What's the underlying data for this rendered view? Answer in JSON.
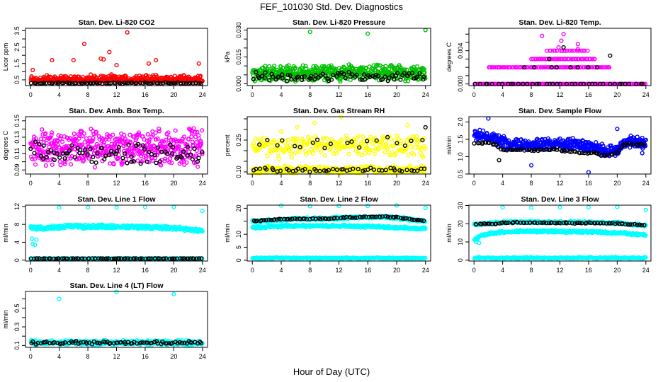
{
  "title": "FEF_101030  Std. Dev. Diagnostics",
  "xlabel": "Hour of Day (UTC)",
  "chart_data": [
    {
      "type": "scatter",
      "title": "Stan. Dev. Li-820 CO2",
      "ylabel": "Licor ppm",
      "xlim": [
        0,
        24
      ],
      "ylim": [
        0.15,
        3.65
      ],
      "yticks": [
        0.5,
        1,
        1.5,
        2,
        2.5,
        3,
        3.5
      ],
      "yticklabels": [
        "0.5",
        "",
        "1.5",
        "",
        "2.5",
        "",
        "3.5"
      ],
      "series": [
        {
          "color": "#ff0000",
          "level": [
            0.5
          ],
          "spread": 0.35,
          "n": 420,
          "pos": true
        },
        {
          "color": "#000000",
          "level": [
            0.3
          ],
          "spread": 0.05,
          "n": 80
        }
      ],
      "outliers": [
        {
          "color": "#ff0000",
          "pts": [
            [
              7.5,
              2.7
            ],
            [
              13.5,
              3.4
            ],
            [
              9.8,
              1.8
            ],
            [
              10.2,
              1.75
            ],
            [
              11,
              2.2
            ],
            [
              3,
              1.7
            ],
            [
              6,
              1.7
            ],
            [
              16.5,
              1.5
            ],
            [
              17.5,
              1.7
            ],
            [
              23.5,
              1.5
            ],
            [
              0.3,
              1.1
            ],
            [
              12,
              1.4
            ]
          ]
        }
      ]
    },
    {
      "type": "scatter",
      "title": "Stan. Dev. Li-820 Pressure",
      "ylabel": "kPa",
      "xlim": [
        0,
        24
      ],
      "ylim": [
        -0.001,
        0.031
      ],
      "yticks": [
        0,
        0.005,
        0.01,
        0.015,
        0.02,
        0.025,
        0.03
      ],
      "yticklabels": [
        "0.000",
        "",
        "",
        "0.015",
        "",
        "",
        "0.030"
      ],
      "series": [
        {
          "color": "#00c000",
          "level": [
            0.006
          ],
          "spread": 0.005,
          "n": 500
        },
        {
          "color": "#000000",
          "level": [
            0.004
          ],
          "spread": 0.003,
          "n": 80
        }
      ],
      "outliers": [
        {
          "color": "#00c000",
          "pts": [
            [
              8,
              0.029
            ],
            [
              16,
              0.028
            ],
            [
              24,
              0.03
            ]
          ]
        }
      ]
    },
    {
      "type": "scatter",
      "title": "Stan. Dev. Li-820 Temp.",
      "ylabel": "degrees C",
      "xlim": [
        0,
        24
      ],
      "ylim": [
        -0.0002,
        0.0067
      ],
      "yticks": [
        0,
        0.001,
        0.002,
        0.003,
        0.004,
        0.005,
        0.006
      ],
      "yticklabels": [
        "0.000",
        "",
        "",
        "",
        "0.004",
        "",
        ""
      ],
      "series": [
        {
          "color": "#ff00ff",
          "level": [
            0
          ],
          "spread": 0,
          "n": 160
        },
        {
          "color": "#000000",
          "level": [
            0
          ],
          "spread": 0,
          "n": 40
        },
        {
          "color": "#ff00ff",
          "level": [
            0.002
          ],
          "spread": 0,
          "n": 90,
          "xrange": [
            2,
            19
          ]
        },
        {
          "color": "#ff00ff",
          "level": [
            0.003
          ],
          "spread": 0,
          "n": 45,
          "xrange": [
            8,
            17
          ]
        },
        {
          "color": "#ff00ff",
          "level": [
            0.004
          ],
          "spread": 0,
          "n": 20,
          "xrange": [
            10,
            16
          ]
        },
        {
          "color": "#000000",
          "level": [
            0.002
          ],
          "spread": 0,
          "n": 8,
          "xrange": [
            7,
            18
          ]
        }
      ],
      "outliers": [
        {
          "color": "#ff00ff",
          "pts": [
            [
              9.5,
              0.0058
            ],
            [
              12.5,
              0.006
            ],
            [
              12.2,
              0.0052
            ],
            [
              14.5,
              0.0048
            ],
            [
              11.8,
              0.0044
            ],
            [
              14.5,
              0.0042
            ]
          ]
        },
        {
          "color": "#000000",
          "pts": [
            [
              12.5,
              0.0044
            ],
            [
              19,
              0.0034
            ],
            [
              10.5,
              0.003
            ]
          ]
        }
      ]
    },
    {
      "type": "scatter",
      "title": "Stan. Dev. Amb. Box Temp.",
      "ylabel": "degrees C",
      "xlim": [
        0,
        24
      ],
      "ylim": [
        0.085,
        0.155
      ],
      "yticks": [
        0.09,
        0.1,
        0.11,
        0.12,
        0.13,
        0.14,
        0.15
      ],
      "yticklabels": [
        "0.09",
        "",
        "0.11",
        "",
        "0.13",
        "",
        "0.15"
      ],
      "series": [
        {
          "color": "#ff00ff",
          "level": [
            0.117
          ],
          "spread": 0.026,
          "n": 500
        },
        {
          "color": "#000000",
          "level": [
            0.11
          ],
          "spread": 0.015,
          "n": 80
        }
      ],
      "outliers": []
    },
    {
      "type": "scatter",
      "title": "Stan. Dev. Gas Stream RH",
      "ylabel": "percent",
      "xlim": [
        0,
        24
      ],
      "ylim": [
        0.09,
        0.36
      ],
      "yticks": [
        0.1,
        0.15,
        0.2,
        0.25,
        0.3,
        0.35
      ],
      "yticklabels": [
        "0.10",
        "",
        "",
        "0.25",
        "",
        ""
      ],
      "series": [
        {
          "color": "#ffff00",
          "level": [
            0.11
          ],
          "spread": 0.02,
          "n": 320
        },
        {
          "color": "#ffff00",
          "level": [
            0.22
          ],
          "spread": 0.06,
          "n": 250
        },
        {
          "color": "#000000",
          "level": [
            0.11
          ],
          "spread": 0.01,
          "n": 50
        },
        {
          "color": "#000000",
          "level": [
            0.24
          ],
          "spread": 0.035,
          "n": 20
        }
      ],
      "outliers": [
        {
          "color": "#ffff00",
          "pts": [
            [
              12.3,
              0.36
            ],
            [
              8.6,
              0.33
            ],
            [
              4,
              0.29
            ],
            [
              6.2,
              0.31
            ],
            [
              21.5,
              0.32
            ]
          ]
        },
        {
          "color": "#000000",
          "pts": [
            [
              24,
              0.31
            ]
          ]
        }
      ]
    },
    {
      "type": "scatter",
      "title": "Stan. Dev. Sample Flow",
      "ylabel": "ml/min",
      "xlim": [
        0,
        24
      ],
      "ylim": [
        0.5,
        2.15
      ],
      "yticks": [
        0.5,
        1,
        1.5,
        2
      ],
      "yticklabels": [
        "0.5",
        "1.0",
        "1.5",
        "2.0"
      ],
      "series": [
        {
          "color": "#0000ff",
          "level": [
            1.6,
            1.6,
            1.55,
            1.5,
            1.4,
            1.35,
            1.35,
            1.35,
            1.35,
            1.35,
            1.35,
            1.35,
            1.35,
            1.35,
            1.35,
            1.33,
            1.3,
            1.25,
            1.2,
            1.15,
            1.15,
            1.4,
            1.45,
            1.4,
            1.35
          ],
          "spread": 0.2,
          "n": 520
        },
        {
          "color": "#000000",
          "level": [
            1.4,
            1.4,
            1.4,
            1.35,
            1.2,
            1.2,
            1.2,
            1.2,
            1.2,
            1.2,
            1.2,
            1.2,
            1.2,
            1.15,
            1.15,
            1.1,
            1.1,
            1.1,
            1.05,
            1.05,
            1.1,
            1.35,
            1.35,
            1.35,
            1.35
          ],
          "spread": 0.04,
          "n": 80
        }
      ],
      "outliers": [
        {
          "color": "#0000ff",
          "pts": [
            [
              2,
              2.1
            ],
            [
              8,
              0.75
            ],
            [
              16,
              0.55
            ],
            [
              20,
              1.8
            ],
            [
              23.5,
              1.1
            ]
          ]
        },
        {
          "color": "#000000",
          "pts": [
            [
              3.5,
              0.9
            ]
          ]
        }
      ]
    },
    {
      "type": "scatter",
      "title": "Stan. Dev. Line 1 Flow",
      "ylabel": "ml/min",
      "xlim": [
        0,
        24
      ],
      "ylim": [
        -0.2,
        12.3
      ],
      "yticks": [
        0,
        4,
        8,
        12
      ],
      "yticklabels": [
        "0",
        "4",
        "8",
        "12"
      ],
      "series": [
        {
          "color": "#00ffff",
          "level": [
            7.2,
            7.1,
            7.2,
            7.3,
            7.4,
            7.6,
            7.6,
            7.5,
            7.5,
            7.5,
            7.5,
            7.4,
            7.4,
            7.4,
            7.4,
            7.4,
            7.4,
            7.3,
            7.3,
            7.2,
            7.2,
            7.0,
            6.8,
            6.7,
            6.7
          ],
          "spread": 0.5,
          "n": 420
        },
        {
          "color": "#00ffff",
          "level": [
            0.35
          ],
          "spread": 0.1,
          "n": 150
        },
        {
          "color": "#000000",
          "level": [
            0.35
          ],
          "spread": 0.05,
          "n": 80
        }
      ],
      "outliers": [
        {
          "color": "#00ffff",
          "pts": [
            [
              4,
              11.8
            ],
            [
              8,
              11.8
            ],
            [
              12,
              11.8
            ],
            [
              16,
              11.9
            ],
            [
              20,
              11.9
            ],
            [
              24,
              11
            ],
            [
              0.2,
              4.8
            ],
            [
              0.3,
              3.6
            ],
            [
              0.6,
              3.4
            ],
            [
              0.8,
              4.6
            ]
          ]
        }
      ]
    },
    {
      "type": "scatter",
      "title": "Stan. Dev. Line 2 Flow",
      "ylabel": "ml/min",
      "xlim": [
        0,
        24
      ],
      "ylim": [
        -0.3,
        21.2
      ],
      "yticks": [
        0,
        5,
        10,
        15,
        20
      ],
      "yticklabels": [
        "0",
        "5",
        "10",
        "",
        "20"
      ],
      "series": [
        {
          "color": "#00ffff",
          "level": [
            15,
            15,
            15.2,
            15.4,
            15.6,
            15.8,
            15.9,
            16,
            16,
            16,
            16,
            16.1,
            16.2,
            16.3,
            16.4,
            16.5,
            16.5,
            16.6,
            16.6,
            16.5,
            16.3,
            16,
            15.6,
            15.3,
            15
          ],
          "spread": 0.6,
          "n": 350
        },
        {
          "color": "#00ffff",
          "level": [
            12.6,
            12.6,
            12.8,
            13,
            13.1,
            13.2,
            13.2,
            13.2,
            13.2,
            13.2,
            13.2,
            13.2,
            13.2,
            13.2,
            13.1,
            13,
            13,
            12.9,
            12.8,
            12.7,
            12.6,
            12.5,
            12.4,
            12.3,
            12.2
          ],
          "spread": 0.5,
          "n": 350
        },
        {
          "color": "#00ffff",
          "level": [
            0.8
          ],
          "spread": 0.3,
          "n": 250
        },
        {
          "color": "#000000",
          "level": [
            15.2,
            15.2,
            15.4,
            15.6,
            15.8,
            15.8,
            16,
            16,
            16,
            16,
            16,
            16.1,
            16.2,
            16.4,
            16.5,
            16.6,
            16.7,
            16.7,
            16.7,
            16.6,
            16.4,
            16.1,
            15.8,
            15.4,
            15.2
          ],
          "spread": 0.3,
          "n": 80
        }
      ],
      "outliers": [
        {
          "color": "#00ffff",
          "pts": [
            [
              4,
              21
            ],
            [
              8,
              20.8
            ],
            [
              12,
              20.9
            ],
            [
              16,
              20.9
            ],
            [
              20,
              21.1
            ],
            [
              24,
              20.1
            ]
          ]
        }
      ]
    },
    {
      "type": "scatter",
      "title": "Stan. Dev. Line 3 Flow",
      "ylabel": "ml/min",
      "xlim": [
        0,
        24
      ],
      "ylim": [
        -0.5,
        30.2
      ],
      "yticks": [
        0,
        10,
        20,
        30
      ],
      "yticklabels": [
        "0",
        "10",
        "20",
        "30"
      ],
      "series": [
        {
          "color": "#00ffff",
          "level": [
            19.5,
            20,
            20.2,
            20.5,
            20.7,
            21,
            21,
            21,
            21,
            20.8,
            20.8,
            20.8,
            20.8,
            20.8,
            20.8,
            20.8,
            20.8,
            20.6,
            20.6,
            20.5,
            20.5,
            20,
            19.5,
            19.3,
            19
          ],
          "spread": 0.7,
          "n": 350
        },
        {
          "color": "#00ffff",
          "level": [
            11,
            13.5,
            14.5,
            15,
            15.5,
            15.6,
            15.8,
            15.8,
            15.8,
            15.8,
            15.8,
            15.8,
            15.8,
            15.6,
            15.6,
            15.5,
            15.5,
            15.4,
            15.2,
            15,
            15,
            14.8,
            14.3,
            14,
            14
          ],
          "spread": 0.7,
          "n": 350
        },
        {
          "color": "#00ffff",
          "level": [
            1.2
          ],
          "spread": 0.5,
          "n": 250
        },
        {
          "color": "#000000",
          "level": [
            19.8,
            19.8,
            19.9,
            20,
            20.3,
            20.5,
            20.6,
            20.6,
            20.6,
            20.6,
            20.5,
            20.5,
            20.4,
            20.4,
            20.4,
            20.4,
            20.4,
            20.4,
            20.3,
            20.3,
            20.2,
            19.8,
            19.5,
            19.3,
            19.2
          ],
          "spread": 0.4,
          "n": 80
        }
      ],
      "outliers": [
        {
          "color": "#00ffff",
          "pts": [
            [
              4,
              29
            ],
            [
              8,
              28.8
            ],
            [
              12,
              29
            ],
            [
              16,
              29
            ],
            [
              20,
              29.2
            ],
            [
              24,
              27.5
            ],
            [
              0.3,
              10
            ],
            [
              0.7,
              9.5
            ]
          ]
        }
      ]
    },
    {
      "type": "scatter",
      "title": "Stan. Dev. Line 4 (LT) Flow",
      "ylabel": "ml/min",
      "xlim": [
        0,
        24
      ],
      "ylim": [
        0.08,
        0.68
      ],
      "yticks": [
        0.1,
        0.2,
        0.3,
        0.4,
        0.5,
        0.6
      ],
      "yticklabels": [
        "0.1",
        "",
        "0.3",
        "",
        "0.5",
        ""
      ],
      "series": [
        {
          "color": "#00ffff",
          "level": [
            0.13
          ],
          "spread": 0.03,
          "n": 350
        },
        {
          "color": "#000000",
          "level": [
            0.13
          ],
          "spread": 0.02,
          "n": 80
        }
      ],
      "outliers": [
        {
          "color": "#00ffff",
          "pts": [
            [
              4,
              0.6
            ],
            [
              12,
              0.675
            ],
            [
              20,
              0.65
            ]
          ]
        }
      ]
    }
  ]
}
